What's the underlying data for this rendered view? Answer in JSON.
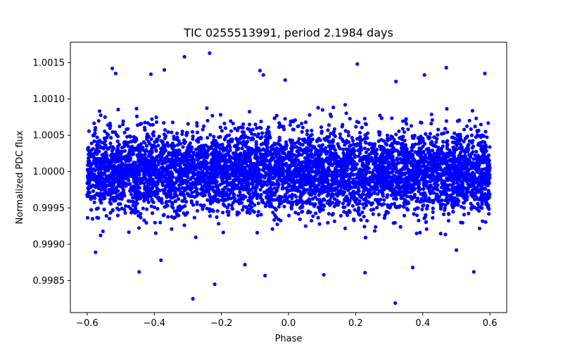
{
  "chart_data": {
    "type": "scatter",
    "title": "TIC 0255513991, period 2.1984 days",
    "xlabel": "Phase",
    "ylabel": "Normalized PDC flux",
    "xlim": [
      -0.65,
      0.65
    ],
    "ylim": [
      0.99806,
      1.00178
    ],
    "xticks": [
      -0.6,
      -0.4,
      -0.2,
      0.0,
      0.2,
      0.4,
      0.6
    ],
    "xtick_labels": [
      "−0.6",
      "−0.4",
      "−0.2",
      "0.0",
      "0.2",
      "0.4",
      "0.6"
    ],
    "yticks": [
      0.9985,
      0.999,
      0.9995,
      1.0,
      1.0005,
      1.001,
      1.0015
    ],
    "ytick_labels": [
      "0.9985",
      "0.9990",
      "0.9995",
      "1.0000",
      "1.0005",
      "1.0010",
      "1.0015"
    ],
    "series": [
      {
        "name": "flux",
        "color": "#0000ff",
        "marker": "circle",
        "x_range": [
          -0.6,
          0.6
        ],
        "center": 1.0,
        "scatter_sigma": 0.00028,
        "n_points": 6000,
        "outliers": [
          {
            "x": -0.235,
            "y": 1.00163
          },
          {
            "x": -0.31,
            "y": 1.00158
          },
          {
            "x": -0.525,
            "y": 1.00142
          },
          {
            "x": -0.515,
            "y": 1.00135
          },
          {
            "x": -0.37,
            "y": 1.0014
          },
          {
            "x": -0.41,
            "y": 1.00134
          },
          {
            "x": -0.085,
            "y": 1.00139
          },
          {
            "x": -0.075,
            "y": 1.00133
          },
          {
            "x": -0.01,
            "y": 1.00126
          },
          {
            "x": 0.205,
            "y": 1.00148
          },
          {
            "x": 0.405,
            "y": 1.00133
          },
          {
            "x": 0.47,
            "y": 1.00143
          },
          {
            "x": 0.585,
            "y": 1.00135
          },
          {
            "x": 0.32,
            "y": 1.00124
          },
          {
            "x": -0.285,
            "y": 0.99825
          },
          {
            "x": -0.22,
            "y": 0.99845
          },
          {
            "x": 0.318,
            "y": 0.99819
          },
          {
            "x": -0.445,
            "y": 0.99862
          },
          {
            "x": 0.552,
            "y": 0.99862
          },
          {
            "x": 0.105,
            "y": 0.99858
          },
          {
            "x": -0.575,
            "y": 0.99889
          },
          {
            "x": -0.07,
            "y": 0.99857
          },
          {
            "x": 0.228,
            "y": 0.99861
          },
          {
            "x": 0.37,
            "y": 0.99868
          },
          {
            "x": -0.13,
            "y": 0.99872
          },
          {
            "x": 0.5,
            "y": 0.99892
          },
          {
            "x": -0.38,
            "y": 0.99878
          }
        ]
      }
    ]
  }
}
